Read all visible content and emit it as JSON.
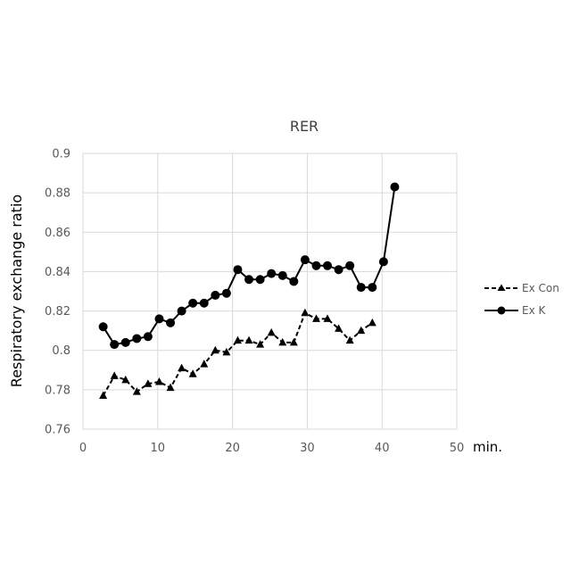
{
  "chart_data": {
    "type": "line",
    "title": "RER",
    "xlabel": "min.",
    "ylabel": "Respiratory exchange ratio",
    "xlim": [
      0,
      50
    ],
    "ylim": [
      0.76,
      0.9
    ],
    "x_ticks": [
      "0",
      "10",
      "20",
      "30",
      "40",
      "50"
    ],
    "y_ticks": [
      "0.76",
      "0.78",
      "0.8",
      "0.82",
      "0.84",
      "0.86",
      "0.88",
      "0.9"
    ],
    "grid": true,
    "legend_position": "right",
    "series": [
      {
        "name": "Ex Con",
        "marker": "triangle",
        "line_style": "dashed",
        "color": "#000000",
        "x": [
          2.7,
          4.2,
          5.7,
          7.2,
          8.7,
          10.2,
          11.7,
          13.2,
          14.7,
          16.2,
          17.7,
          19.2,
          20.7,
          22.2,
          23.7,
          25.2,
          26.7,
          28.2,
          29.7,
          31.2,
          32.7,
          34.2,
          35.7,
          37.2,
          38.7
        ],
        "values": [
          0.777,
          0.787,
          0.785,
          0.779,
          0.783,
          0.784,
          0.781,
          0.791,
          0.788,
          0.793,
          0.8,
          0.799,
          0.805,
          0.805,
          0.803,
          0.809,
          0.804,
          0.804,
          0.819,
          0.816,
          0.816,
          0.811,
          0.805,
          0.81,
          0.814
        ]
      },
      {
        "name": "Ex K",
        "marker": "circle",
        "line_style": "solid",
        "color": "#000000",
        "x": [
          2.7,
          4.2,
          5.7,
          7.2,
          8.7,
          10.2,
          11.7,
          13.2,
          14.7,
          16.2,
          17.7,
          19.2,
          20.7,
          22.2,
          23.7,
          25.2,
          26.7,
          28.2,
          29.7,
          31.2,
          32.7,
          34.2,
          35.7,
          37.2,
          38.7,
          40.2,
          41.7
        ],
        "values": [
          0.812,
          0.803,
          0.804,
          0.806,
          0.807,
          0.816,
          0.814,
          0.82,
          0.824,
          0.824,
          0.828,
          0.829,
          0.841,
          0.836,
          0.836,
          0.839,
          0.838,
          0.835,
          0.846,
          0.843,
          0.843,
          0.841,
          0.843,
          0.832,
          0.832,
          0.845,
          0.883
        ]
      }
    ]
  }
}
